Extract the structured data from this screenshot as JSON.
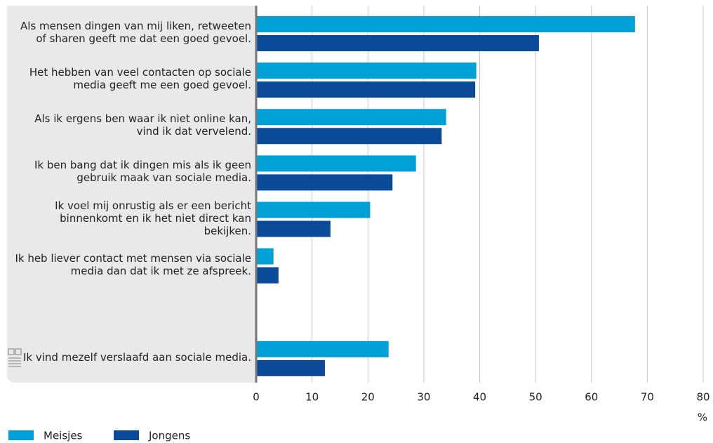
{
  "chart_data": {
    "type": "bar",
    "orientation": "horizontal",
    "categories": [
      "Als mensen dingen van mij liken, retweeten of sharen geeft me dat een goed gevoel.",
      "Het hebben van veel contacten op sociale media geeft me een goed gevoel.",
      "Als ik ergens ben waar ik niet online kan, vind ik dat vervelend.",
      "Ik ben bang dat ik dingen mis als ik geen gebruik maak van sociale media.",
      "Ik voel mij onrustig als er een bericht binnenkomt en ik het niet direct kan bekijken.",
      "Ik heb liever contact met mensen via sociale media dan dat ik met ze afspreek.",
      null,
      "Ik vind mezelf verslaafd aan sociale media."
    ],
    "series": [
      {
        "name": "Meisjes",
        "color": "#00a1d6",
        "values": [
          67.8,
          39.4,
          34.0,
          28.6,
          20.4,
          3.1,
          null,
          23.7
        ]
      },
      {
        "name": "Jongens",
        "color": "#0b4a98",
        "values": [
          50.6,
          39.2,
          33.2,
          24.4,
          13.3,
          4.0,
          null,
          12.3
        ]
      }
    ],
    "xlabel": "%",
    "xlim": [
      0,
      80
    ],
    "xticks": [
      0,
      10,
      20,
      30,
      40,
      50,
      60,
      70,
      80
    ],
    "grid": true
  }
}
